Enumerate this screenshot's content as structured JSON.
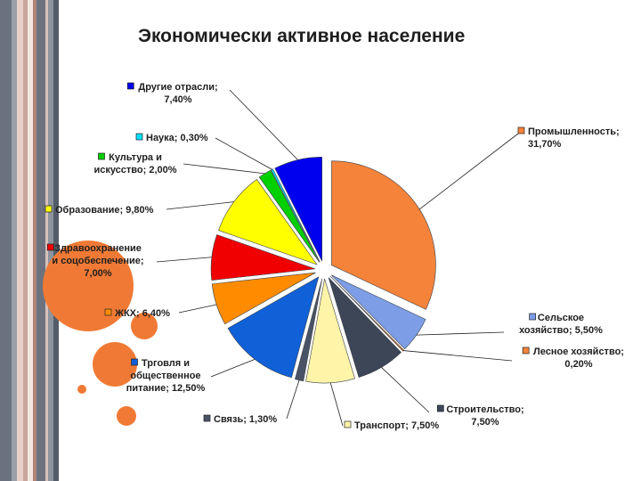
{
  "slide": {
    "background": "#545c69",
    "accent": "#f07a35"
  },
  "chart_data": {
    "type": "pie",
    "title": "Экономически активное население",
    "slices": [
      {
        "label": "Промышленность",
        "value": 31.7,
        "text": "Промышленность;\n31,70%",
        "color": "#f5833a"
      },
      {
        "label": "Сельское хозяйство",
        "value": 5.5,
        "text": "Сельское\nхозяйство; 5,50%",
        "color": "#7d9ee6"
      },
      {
        "label": "Лесное хозяйство",
        "value": 0.2,
        "text": "Лесное хозяйство;\n0,20%",
        "color": "#f5833a"
      },
      {
        "label": "Строительство",
        "value": 7.5,
        "text": "Строительство;\n7,50%",
        "color": "#3d4657"
      },
      {
        "label": "Транспорт",
        "value": 7.5,
        "text": "Транспорт; 7,50%",
        "color": "#fff4a8"
      },
      {
        "label": "Связь",
        "value": 1.3,
        "text": "Связь; 1,30%",
        "color": "#4a5366"
      },
      {
        "label": "Трговля и общественное питание",
        "value": 12.5,
        "text": "Трговля и\nобщественное\nпитание; 12,50%",
        "color": "#1060d8"
      },
      {
        "label": "ЖКХ",
        "value": 6.4,
        "text": "ЖКХ; 6,40%",
        "color": "#ff8c00"
      },
      {
        "label": "Здравоохранение и соцобеспечение",
        "value": 7.0,
        "text": "Здравоохранение\nи соцобеспечение;\n7,00%",
        "color": "#f00000"
      },
      {
        "label": "Образование",
        "value": 9.8,
        "text": "Образование; 9,80%",
        "color": "#ffff00"
      },
      {
        "label": "Культура и искусство",
        "value": 2.0,
        "text": "Культура и\nискусство; 2,00%",
        "color": "#00d000"
      },
      {
        "label": "Наука",
        "value": 0.3,
        "text": "Наука; 0,30%",
        "color": "#00e0ff"
      },
      {
        "label": "Другие отрасли",
        "value": 7.4,
        "text": "Другие отрасли;\n7,40%",
        "color": "#0000ee"
      }
    ]
  }
}
